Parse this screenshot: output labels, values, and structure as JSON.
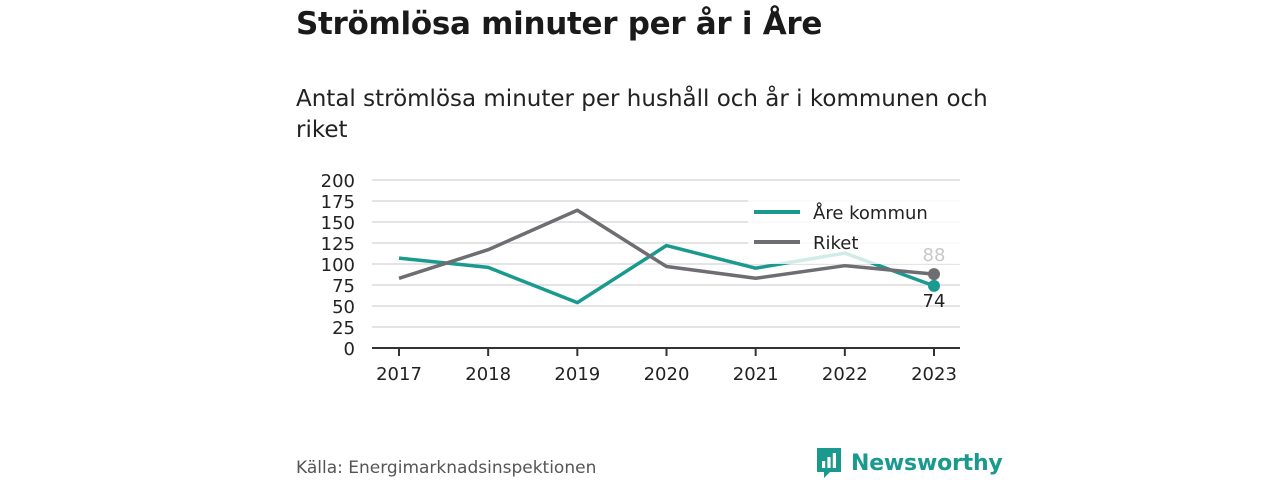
{
  "title": "Strömlösa minuter per år i Åre",
  "subtitle": "Antal strömlösa minuter per hushåll och år i kommunen och riket",
  "source": "Källa: Energimarknadsinspektionen",
  "brand": {
    "name": "Newsworthy",
    "icon": "newsworthy-logo-icon"
  },
  "colors": {
    "are": "#1a9a8e",
    "riket": "#6d6d72",
    "grid": "#dcdcdc",
    "axis": "#333333"
  },
  "chart_data": {
    "type": "line",
    "x": [
      "2017",
      "2018",
      "2019",
      "2020",
      "2021",
      "2022",
      "2023"
    ],
    "ylim": [
      0,
      200
    ],
    "yticks": [
      0,
      25,
      50,
      75,
      100,
      125,
      150,
      175,
      200
    ],
    "grid": true,
    "legend_position": "top-right",
    "series": [
      {
        "name": "Åre kommun",
        "color": "#1a9a8e",
        "values": [
          107,
          96,
          54,
          122,
          95,
          113,
          74
        ]
      },
      {
        "name": "Riket",
        "color": "#6d6d72",
        "values": [
          83,
          117,
          164,
          97,
          83,
          98,
          88
        ]
      }
    ],
    "end_labels": [
      "88",
      "74"
    ]
  }
}
